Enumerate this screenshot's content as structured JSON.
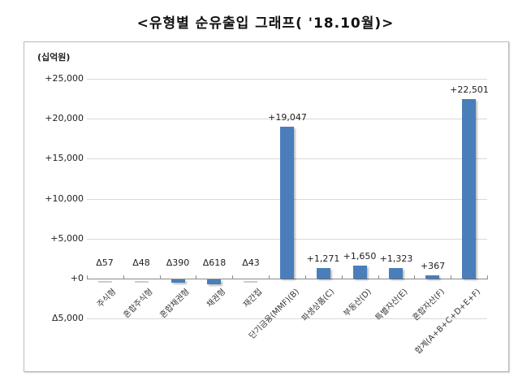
{
  "title": "<유형별 순유출입 그래프( '18.10월)>",
  "chart_data": {
    "type": "bar",
    "title": "<유형별 순유출입 그래프( '18.10월)>",
    "ylabel": "(십억원)",
    "xlabel": "",
    "ylim": [
      -5000,
      25000
    ],
    "yticks": [
      25000,
      20000,
      15000,
      10000,
      5000,
      0,
      -5000
    ],
    "ytick_labels": [
      "+25,000",
      "+20,000",
      "+15,000",
      "+10,000",
      "+5,000",
      "+0",
      "Δ5,000"
    ],
    "grid": true,
    "legend": null,
    "categories": [
      "주식형",
      "혼합주식형",
      "혼합채권형",
      "채권형",
      "재간접",
      "단기금융(MMF)(B)",
      "파생상품(C)",
      "부동산(D)",
      "특별자산(E)",
      "혼합자산(F)",
      "합계(A+B+C+D+E+F)"
    ],
    "values": [
      -57,
      -48,
      -390,
      -618,
      -43,
      19047,
      1271,
      1650,
      1323,
      367,
      22501
    ],
    "value_labels": [
      "Δ57",
      "Δ48",
      "Δ390",
      "Δ618",
      "Δ43",
      "+19,047",
      "+1,271",
      "+1,650",
      "+1,323",
      "+367",
      "+22,501"
    ],
    "colors": {
      "bar": "#4a7ebb",
      "bar_small_negative": "#cccccc",
      "grid": "#d9d9d9"
    }
  }
}
